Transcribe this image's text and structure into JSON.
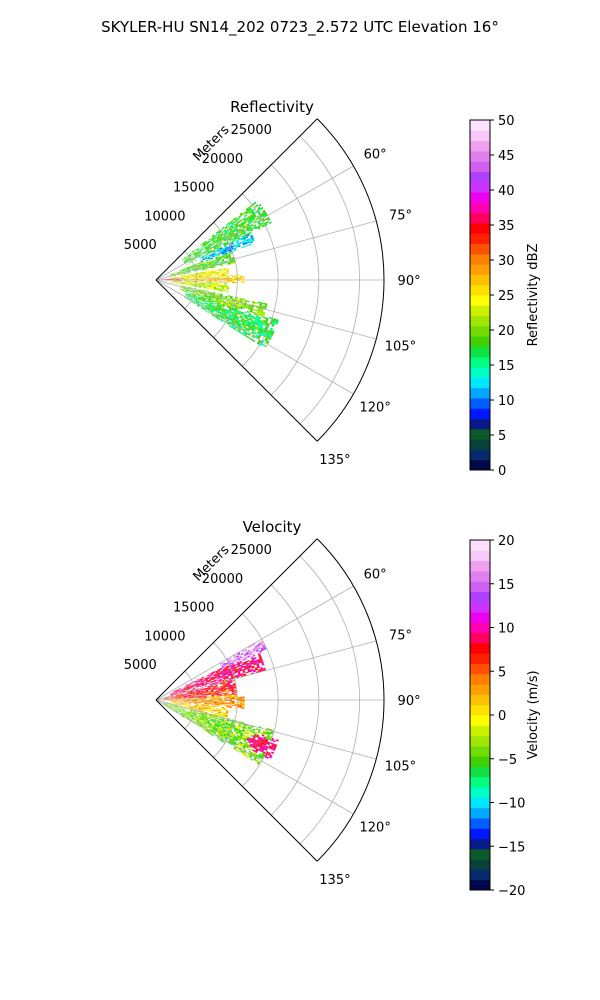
{
  "figure": {
    "suptitle": "SKYLER-HU  SN14_202  0723_2.572 UTC Elevation 16°"
  },
  "chart_data": [
    {
      "type": "heatmap",
      "subtype": "polar-sector",
      "title": "Reflectivity",
      "range_axis_label": "Meters",
      "range_ticks": [
        5000,
        10000,
        15000,
        20000,
        25000
      ],
      "range_tick_labels": [
        "5000",
        "10000",
        "15000",
        "20000",
        "25000"
      ],
      "range_max": 28000,
      "azimuth_range": [
        45,
        135
      ],
      "azimuth_ticks": [
        60,
        75,
        90,
        105,
        120,
        135
      ],
      "azimuth_tick_labels": [
        "60°",
        "75°",
        "90°",
        "105°",
        "120°",
        "135°"
      ],
      "grid": true,
      "colorbar": {
        "label": "Reflectivity dBZ",
        "min": 0,
        "max": 50,
        "ticks": [
          0,
          5,
          10,
          15,
          20,
          25,
          30,
          35,
          40,
          45,
          50
        ],
        "tick_labels": [
          "0",
          "5",
          "10",
          "15",
          "20",
          "25",
          "30",
          "35",
          "40",
          "45",
          "50"
        ],
        "colors": [
          "#000a4a",
          "#062a6e",
          "#08403a",
          "#0a5a2a",
          "#0a1a8c",
          "#0018ff",
          "#0060ff",
          "#00a8ff",
          "#00e6ff",
          "#00ffc8",
          "#00ff80",
          "#10e040",
          "#40d000",
          "#70dc00",
          "#a0e600",
          "#ccf000",
          "#ffff00",
          "#ffe000",
          "#ffc000",
          "#ffa000",
          "#ff8000",
          "#ff5000",
          "#ff2000",
          "#ff0000",
          "#ff0060",
          "#ff00b0",
          "#f000f0",
          "#cc33ff",
          "#b040ff",
          "#d060f0",
          "#e080f0",
          "#f0a0f0",
          "#f8c8f8",
          "#fde0fd"
        ]
      },
      "fields": [
        {
          "az": [
            52,
            64
          ],
          "r": [
            4000,
            16000
          ],
          "value": 18
        },
        {
          "az": [
            64,
            70
          ],
          "r": [
            6000,
            13000
          ],
          "value": 12
        },
        {
          "az": [
            68,
            78
          ],
          "r": [
            2000,
            10000
          ],
          "value": 19
        },
        {
          "az": [
            80,
            88
          ],
          "r": [
            1500,
            9000
          ],
          "value": 24
        },
        {
          "az": [
            86,
            92
          ],
          "r": [
            2000,
            11000
          ],
          "value": 26
        },
        {
          "az": [
            92,
            100
          ],
          "r": [
            2000,
            9000
          ],
          "value": 22
        },
        {
          "az": [
            102,
            112
          ],
          "r": [
            3000,
            14000
          ],
          "value": 20
        },
        {
          "az": [
            108,
            122
          ],
          "r": [
            4000,
            16000
          ],
          "value": 17
        },
        {
          "az": [
            85,
            92
          ],
          "r": [
            500,
            3500
          ],
          "value": 35
        }
      ]
    },
    {
      "type": "heatmap",
      "subtype": "polar-sector",
      "title": "Velocity",
      "range_axis_label": "Meters",
      "range_ticks": [
        5000,
        10000,
        15000,
        20000,
        25000
      ],
      "range_tick_labels": [
        "5000",
        "10000",
        "15000",
        "20000",
        "25000"
      ],
      "range_max": 28000,
      "azimuth_range": [
        45,
        135
      ],
      "azimuth_ticks": [
        60,
        75,
        90,
        105,
        120,
        135
      ],
      "azimuth_tick_labels": [
        "60°",
        "75°",
        "90°",
        "105°",
        "120°",
        "135°"
      ],
      "grid": true,
      "colorbar": {
        "label": "Velocity (m/s)",
        "min": -20,
        "max": 20,
        "ticks": [
          -20,
          -15,
          -10,
          -5,
          0,
          5,
          10,
          15,
          20
        ],
        "tick_labels": [
          "−20",
          "−15",
          "−10",
          "−5",
          "0",
          "5",
          "10",
          "15",
          "20"
        ],
        "colors": [
          "#000a4a",
          "#062a6e",
          "#08403a",
          "#0a5a2a",
          "#0a1a8c",
          "#0018ff",
          "#0060ff",
          "#00a8ff",
          "#00e6ff",
          "#00ffc8",
          "#00ff80",
          "#10e040",
          "#40d000",
          "#70dc00",
          "#a0e600",
          "#ccf000",
          "#ffff00",
          "#ffe000",
          "#ffc000",
          "#ffa000",
          "#ff8000",
          "#ff5000",
          "#ff2000",
          "#ff0000",
          "#ff0060",
          "#ff00b0",
          "#f000f0",
          "#cc33ff",
          "#b040ff",
          "#d060f0",
          "#e080f0",
          "#f0a0f0",
          "#f8c8f8",
          "#fde0fd"
        ]
      },
      "fields": [
        {
          "az": [
            60,
            66
          ],
          "r": [
            9000,
            15000
          ],
          "value": 16
        },
        {
          "az": [
            64,
            75
          ],
          "r": [
            2000,
            14000
          ],
          "value": 9
        },
        {
          "az": [
            75,
            88
          ],
          "r": [
            1000,
            10000
          ],
          "value": 7
        },
        {
          "az": [
            86,
            96
          ],
          "r": [
            2000,
            11000
          ],
          "value": 3
        },
        {
          "az": [
            96,
            104
          ],
          "r": [
            2000,
            9000
          ],
          "value": 1
        },
        {
          "az": [
            104,
            122
          ],
          "r": [
            1000,
            15000
          ],
          "value": -4
        },
        {
          "az": [
            108,
            118
          ],
          "r": [
            11000,
            16000
          ],
          "value": 9
        }
      ]
    }
  ]
}
